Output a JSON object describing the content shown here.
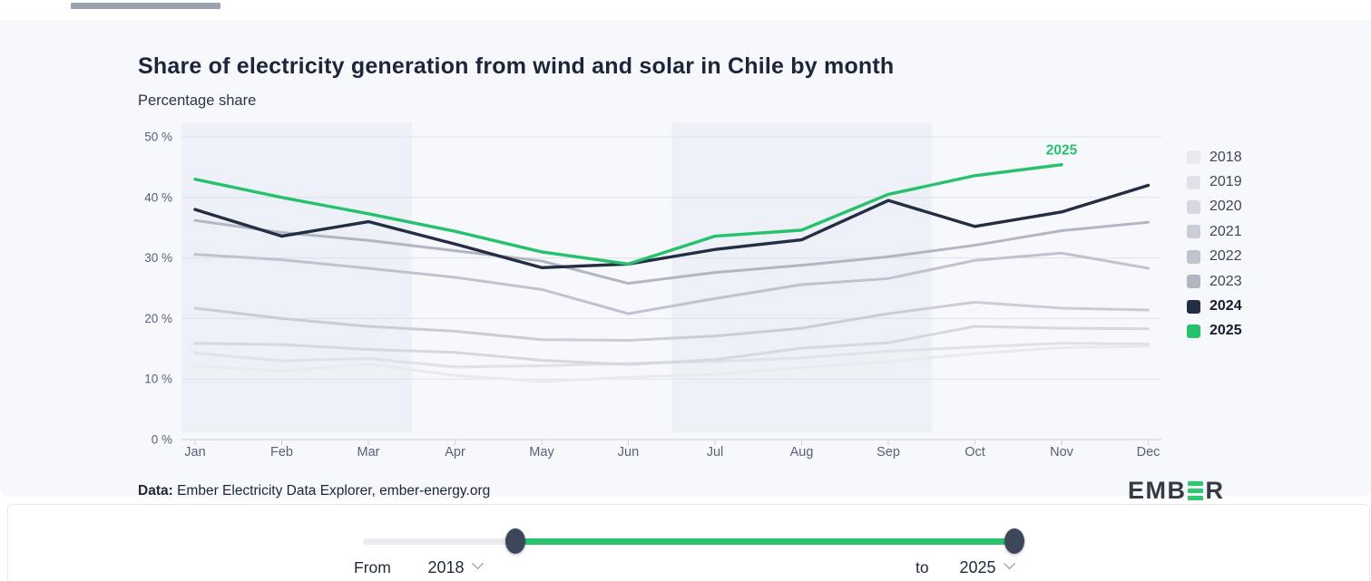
{
  "card": {
    "title": "Share of electricity generation from wind and solar in Chile by month",
    "subtitle": "Percentage share",
    "source_prefix": "Data:",
    "source_rest": " Ember Electricity Data Explorer, ember-energy.org",
    "logo_left": "EMB",
    "logo_right": "R",
    "logo_bar_color": "#2cc96e"
  },
  "chart_data": {
    "type": "line",
    "title": "Share of electricity generation from wind and solar in Chile by month",
    "xlabel": "",
    "ylabel": "Percentage share",
    "ylim": [
      0,
      53
    ],
    "grid": true,
    "legend_position": "right",
    "background_bands": "quarterly-shaded (Jan-Mar, Jul-Sep)",
    "x": [
      "Jan",
      "Feb",
      "Mar",
      "Apr",
      "May",
      "Jun",
      "Jul",
      "Aug",
      "Sep",
      "Oct",
      "Nov",
      "Dec"
    ],
    "y_tick_labels": [
      "0 %",
      "10 %",
      "20 %",
      "30 %",
      "40 %",
      "50 %"
    ],
    "y_tick_values": [
      0,
      10,
      20,
      30,
      40,
      50
    ],
    "annotation": {
      "text": "2025",
      "color": "#26c16d",
      "anchor_month": "Nov"
    },
    "series": [
      {
        "name": "2018",
        "color": "#e8eaef",
        "bold": false,
        "values": [
          12.2,
          11.3,
          12.5,
          10.6,
          9.6,
          10.3,
          10.8,
          11.9,
          12.9,
          14.2,
          15.2,
          15.4
        ]
      },
      {
        "name": "2019",
        "color": "#dfe2e8",
        "bold": false,
        "values": [
          14.3,
          13.0,
          13.4,
          12.0,
          12.2,
          12.6,
          12.9,
          13.5,
          14.6,
          15.3,
          15.9,
          15.8
        ]
      },
      {
        "name": "2020",
        "color": "#d5d8e0",
        "bold": false,
        "values": [
          15.9,
          15.7,
          14.9,
          14.4,
          13.1,
          12.4,
          13.2,
          15.1,
          16.0,
          18.7,
          18.4,
          18.3
        ]
      },
      {
        "name": "2021",
        "color": "#c9cdd7",
        "bold": false,
        "values": [
          21.7,
          20.0,
          18.7,
          17.9,
          16.5,
          16.4,
          17.1,
          18.4,
          20.8,
          22.7,
          21.7,
          21.4
        ]
      },
      {
        "name": "2022",
        "color": "#bfc3cf",
        "bold": false,
        "values": [
          30.6,
          29.7,
          28.3,
          26.8,
          24.8,
          20.8,
          23.3,
          25.6,
          26.6,
          29.6,
          30.8,
          28.3
        ]
      },
      {
        "name": "2023",
        "color": "#b1b6c3",
        "bold": false,
        "values": [
          36.2,
          34.2,
          32.9,
          31.2,
          29.5,
          25.8,
          27.6,
          28.8,
          30.2,
          32.1,
          34.5,
          35.9
        ]
      },
      {
        "name": "2024",
        "color": "#232e44",
        "bold": true,
        "values": [
          38.0,
          33.6,
          36.0,
          32.3,
          28.4,
          29.0,
          31.4,
          33.0,
          39.5,
          35.2,
          37.6,
          42.0
        ]
      },
      {
        "name": "2025",
        "color": "#26c16d",
        "bold": true,
        "values": [
          43.0,
          40.0,
          37.3,
          34.4,
          31.0,
          29.0,
          33.6,
          34.6,
          40.5,
          43.6,
          45.4
        ]
      }
    ],
    "colors": {
      "gridline": "#dde1e8",
      "axis": "#ccd1da",
      "tick_text": "#57617a",
      "band_shade": "#edf0f6"
    }
  },
  "controls": {
    "from_label": "From",
    "from_value": "2018",
    "to_label": "to",
    "to_value": "2025",
    "slider_color": "#2bc36d"
  }
}
